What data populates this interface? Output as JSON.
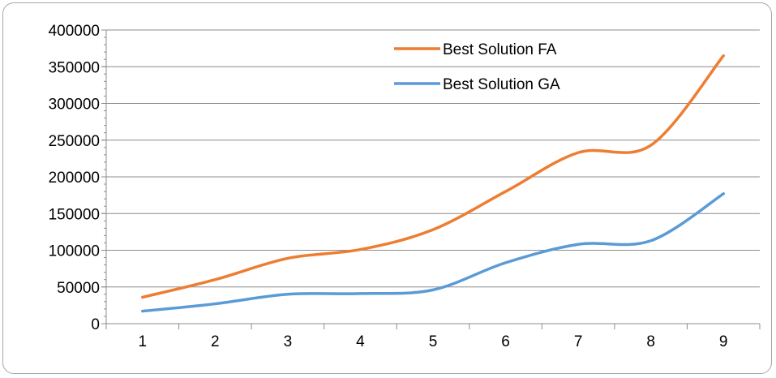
{
  "chart_data": {
    "type": "line",
    "title": "",
    "xlabel": "",
    "ylabel": "",
    "categories": [
      "1",
      "2",
      "3",
      "4",
      "5",
      "6",
      "7",
      "8",
      "9"
    ],
    "ylim": [
      0,
      400000
    ],
    "yticks": [
      0,
      50000,
      100000,
      150000,
      200000,
      250000,
      300000,
      350000,
      400000
    ],
    "ytick_labels": [
      "0",
      "50000",
      "100000",
      "150000",
      "200000",
      "250000",
      "300000",
      "350000",
      "400000"
    ],
    "grid": "horizontal",
    "legend_position": "top-center",
    "smooth": true,
    "series": [
      {
        "name": "Best Solution FA",
        "color": "#ed7d31",
        "values": [
          36000,
          60000,
          89000,
          101000,
          128000,
          180000,
          233000,
          243000,
          365000
        ]
      },
      {
        "name": "Best Solution GA",
        "color": "#5b9bd5",
        "values": [
          17000,
          27000,
          40000,
          41000,
          46000,
          83000,
          108000,
          113000,
          177000
        ]
      }
    ]
  }
}
